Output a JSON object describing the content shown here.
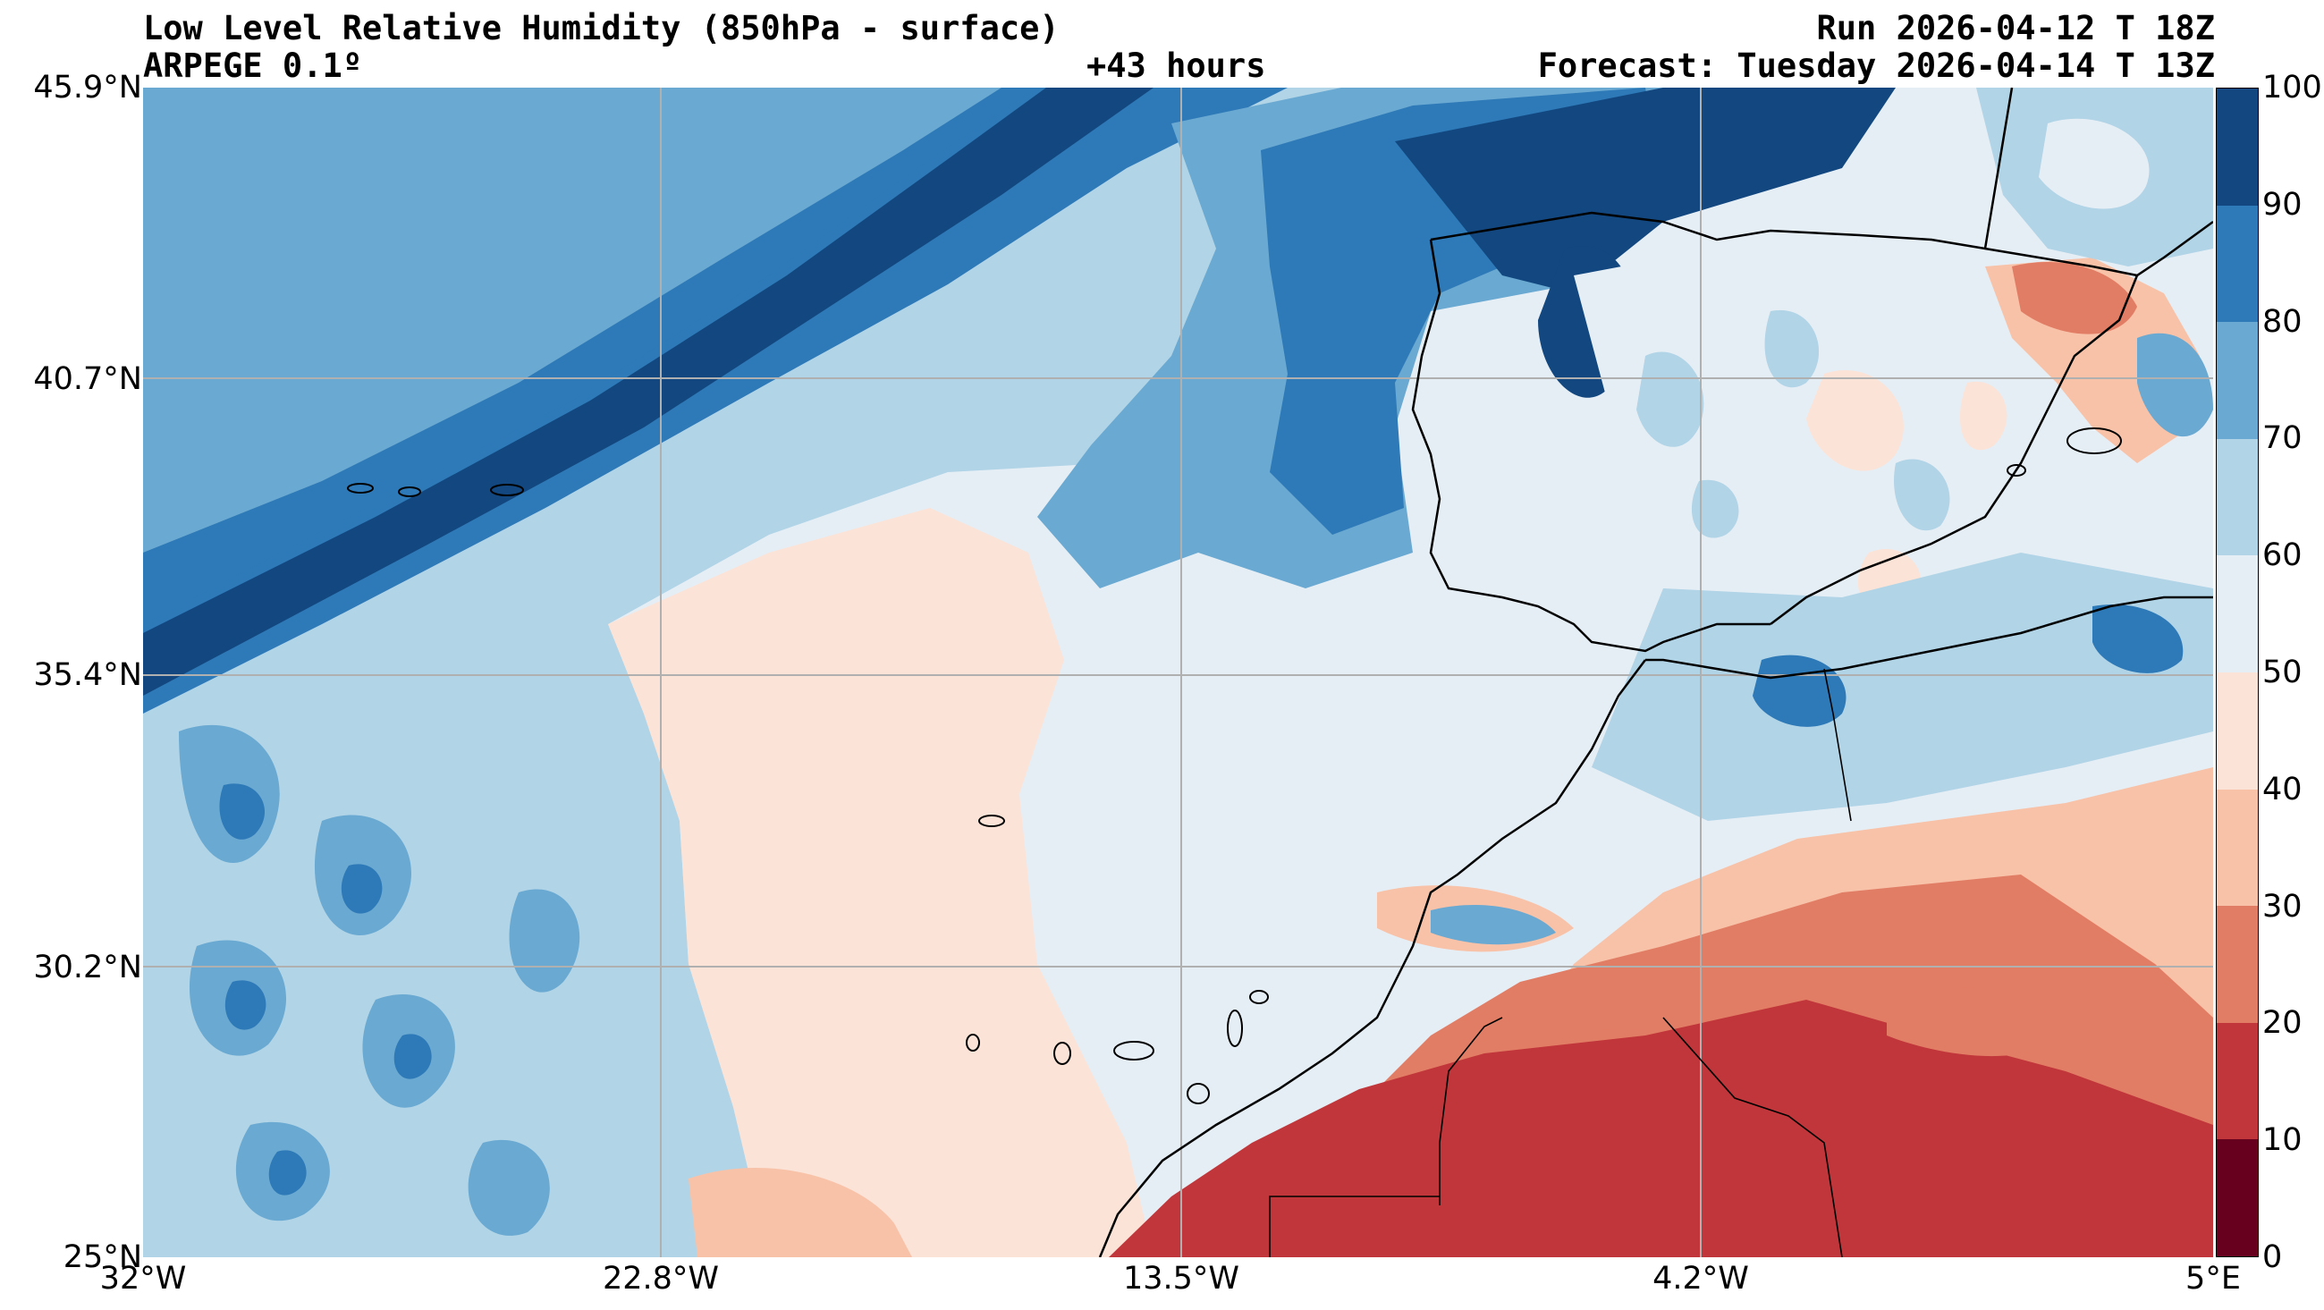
{
  "header": {
    "title": "Low Level Relative Humidity (850hPa - surface)",
    "model": "ARPEGE 0.1º",
    "lead_time": "+43 hours",
    "run": "Run 2026-04-12 T 18Z",
    "forecast": "Forecast: Tuesday 2026-04-14 T 13Z"
  },
  "map": {
    "lon_range": [
      -32,
      5
    ],
    "lat_range": [
      25,
      45.9
    ],
    "lon_ticks": [
      "32°W",
      "22.8°W",
      "13.5°W",
      "4.2°W",
      "5°E"
    ],
    "lat_ticks": [
      "45.9°N",
      "40.7°N",
      "35.4°N",
      "30.2°N",
      "25°N"
    ],
    "grid": true,
    "field": "relative humidity (%)"
  },
  "colorbar": {
    "ticks": [
      "100",
      "90",
      "80",
      "70",
      "60",
      "50",
      "40",
      "30",
      "20",
      "10",
      "0"
    ],
    "colors": [
      "#67001f",
      "#c1363a",
      "#e27d65",
      "#f8c2a8",
      "#fbe3d7",
      "#e6eef5",
      "#b1d4e7",
      "#6aa9d1",
      "#2e79b7",
      "#12477f"
    ]
  }
}
